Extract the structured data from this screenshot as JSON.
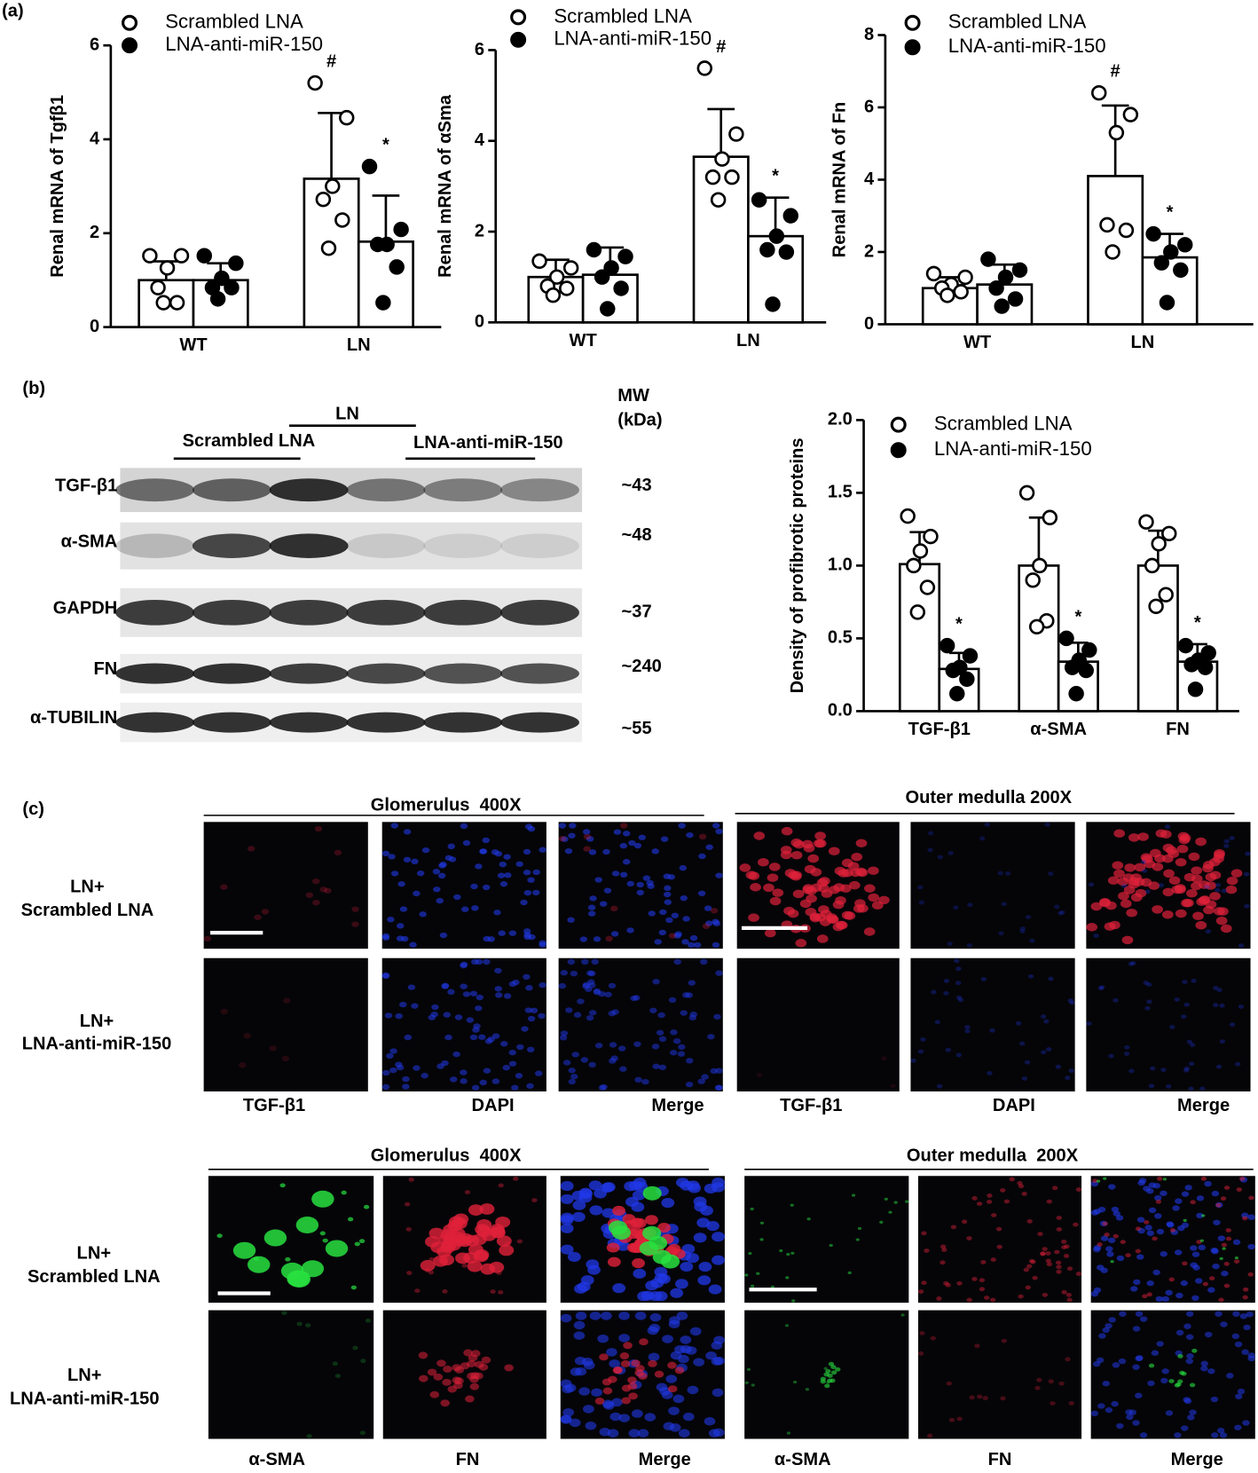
{
  "figure": {
    "panel_labels": [
      "(a)",
      "(b)",
      "(c)"
    ]
  },
  "chart_data": [
    {
      "type": "bar",
      "ylabel": "Renal mRNA of Tgfβ1",
      "categories": [
        "WT",
        "LN"
      ],
      "series": [
        {
          "name": "Scrambled LNA",
          "color": "#ffffff",
          "values": [
            1.0,
            3.16
          ],
          "errors": [
            0.4,
            1.4
          ],
          "points": [
            [
              1.52,
              1.52,
              1.26,
              0.84,
              0.52,
              0.52
            ],
            [
              5.2,
              4.46,
              3.0,
              2.72,
              2.28,
              1.68
            ]
          ],
          "significance": [
            null,
            "#"
          ]
        },
        {
          "name": "LNA-anti-miR-150",
          "color": "#000000",
          "values": [
            1.0,
            1.82
          ],
          "errors": [
            0.36,
            0.98
          ],
          "points": [
            [
              1.52,
              1.36,
              1.04,
              0.84,
              0.84,
              0.6
            ],
            [
              3.42,
              2.08,
              1.76,
              1.76,
              1.28,
              0.52
            ]
          ],
          "significance": [
            null,
            "*"
          ]
        }
      ],
      "ylim": [
        0,
        6
      ],
      "yticks": [
        0,
        2,
        4,
        6
      ]
    },
    {
      "type": "bar",
      "ylabel": "Renal mRNA of αSma",
      "categories": [
        "WT",
        "LN"
      ],
      "series": [
        {
          "name": "Scrambled LNA",
          "color": "#ffffff",
          "values": [
            1.0,
            3.65
          ],
          "errors": [
            0.38,
            1.05
          ],
          "points": [
            [
              1.35,
              1.2,
              1.0,
              0.8,
              0.75,
              0.6
            ],
            [
              5.6,
              4.15,
              3.6,
              3.2,
              3.2,
              2.7
            ]
          ],
          "significance": [
            null,
            "#"
          ]
        },
        {
          "name": "LNA-anti-miR-150",
          "color": "#000000",
          "values": [
            1.05,
            1.9
          ],
          "errors": [
            0.6,
            0.85
          ],
          "points": [
            [
              1.6,
              1.45,
              1.2,
              1.0,
              0.75,
              0.3
            ],
            [
              2.7,
              2.35,
              1.9,
              1.6,
              1.55,
              0.4
            ]
          ],
          "significance": [
            null,
            "*"
          ]
        }
      ],
      "ylim": [
        0,
        6
      ],
      "yticks": [
        0,
        2,
        4,
        6
      ]
    },
    {
      "type": "bar",
      "ylabel": "Renal mRNA of Fn",
      "categories": [
        "WT",
        "LN"
      ],
      "series": [
        {
          "name": "Scrambled LNA",
          "color": "#ffffff",
          "values": [
            1.0,
            4.1
          ],
          "errors": [
            0.3,
            1.95
          ],
          "points": [
            [
              1.4,
              1.3,
              1.1,
              1.0,
              0.9,
              0.8
            ],
            [
              6.4,
              5.8,
              5.3,
              2.75,
              2.6,
              2.0
            ]
          ],
          "significance": [
            null,
            "#"
          ]
        },
        {
          "name": "LNA-anti-miR-150",
          "color": "#000000",
          "values": [
            1.1,
            1.85
          ],
          "errors": [
            0.55,
            0.65
          ],
          "points": [
            [
              1.8,
              1.5,
              1.3,
              1.0,
              0.7,
              0.5
            ],
            [
              2.5,
              2.2,
              2.0,
              1.7,
              1.5,
              0.6
            ]
          ],
          "significance": [
            null,
            "*"
          ]
        }
      ],
      "ylim": [
        0,
        8
      ],
      "yticks": [
        0,
        2,
        4,
        6,
        8
      ]
    },
    {
      "type": "bar",
      "ylabel": "Density of profibrotic proteins",
      "categories": [
        "TGF-β1",
        "α-SMA",
        "FN"
      ],
      "series": [
        {
          "name": "Scrambled LNA",
          "color": "#ffffff",
          "values": [
            1.01,
            1.0,
            1.0
          ],
          "errors": [
            0.22,
            0.33,
            0.24
          ],
          "points": [
            [
              1.34,
              1.2,
              1.1,
              1.0,
              0.85,
              0.68
            ],
            [
              1.5,
              1.33,
              1.0,
              0.9,
              0.62,
              0.58
            ],
            [
              1.3,
              1.22,
              1.15,
              1.0,
              0.8,
              0.72
            ]
          ],
          "significance": [
            null,
            null,
            null
          ]
        },
        {
          "name": "LNA-anti-miR-150",
          "color": "#000000",
          "values": [
            0.29,
            0.34,
            0.34
          ],
          "errors": [
            0.11,
            0.13,
            0.12
          ],
          "points": [
            [
              0.45,
              0.38,
              0.3,
              0.28,
              0.22,
              0.12
            ],
            [
              0.5,
              0.42,
              0.35,
              0.3,
              0.28,
              0.12
            ],
            [
              0.45,
              0.4,
              0.35,
              0.32,
              0.3,
              0.15
            ]
          ],
          "significance": [
            "*",
            "*",
            "*"
          ]
        }
      ],
      "ylim": [
        0,
        2
      ],
      "yticks": [
        {
          "value": 0,
          "label": "0.0"
        },
        0.5,
        {
          "value": 1,
          "label": "1.0"
        },
        1.5,
        {
          "value": 2,
          "label": "2.0"
        }
      ]
    }
  ],
  "blot": {
    "group": "LN",
    "left": "Scrambled LNA",
    "right": "LNA-anti-miR-150",
    "mw_title": [
      "MW",
      "(kDa)"
    ],
    "rows": [
      {
        "label": "TGF-β1",
        "mw": "~43"
      },
      {
        "label": "α-SMA",
        "mw": "~48"
      },
      {
        "label": "GAPDH",
        "mw": "~37"
      },
      {
        "label": "FN",
        "mw": "~240"
      },
      {
        "label": "α-TUBILIN",
        "mw": "~55"
      }
    ]
  },
  "images": {
    "top": {
      "headers": [
        "Glomerulus  400X",
        "Outer medulla 200X"
      ],
      "rows": [
        [
          "LN+",
          "Scrambled LNA"
        ],
        [
          "LN+",
          "LNA-anti-miR-150"
        ]
      ],
      "columns": [
        "TGF-β1",
        "DAPI",
        "Merge",
        "TGF-β1",
        "DAPI",
        "Merge"
      ]
    },
    "bottom": {
      "headers": [
        "Glomerulus  400X",
        "Outer medulla  200X"
      ],
      "rows": [
        [
          "LN+",
          "Scrambled LNA"
        ],
        [
          "LN+",
          "LNA-anti-miR-150"
        ]
      ],
      "columns": [
        "α-SMA",
        "FN",
        "Merge",
        "α-SMA",
        "FN",
        "Merge"
      ]
    }
  }
}
